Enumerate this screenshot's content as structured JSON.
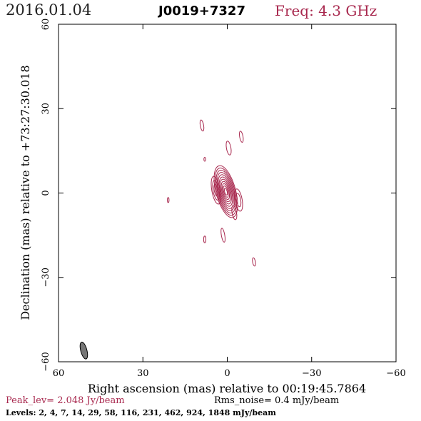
{
  "header": {
    "date": "2016.01.04",
    "source": "J0019+7327",
    "freq": "Freq: 4.3 GHz"
  },
  "chart_data": {
    "type": "contour",
    "xlabel": "Right ascension (mas) relative to 00:19:45.7864",
    "ylabel": "Declination (mas) relative to +73:27:30.018",
    "xlim": [
      60,
      -60
    ],
    "ylim": [
      -60,
      60
    ],
    "x_ticks": [
      "60",
      "30",
      "0",
      "−30",
      "−60"
    ],
    "y_ticks": [
      "60",
      "30",
      "0",
      "−30",
      "−60"
    ],
    "x_tick_values": [
      60,
      30,
      0,
      -30,
      -60
    ],
    "y_tick_values": [
      60,
      30,
      0,
      -30,
      -60
    ],
    "contour_color": "#a8284e",
    "beam_color": "#777777",
    "components": [
      {
        "x": 0.5,
        "y": 0.5,
        "a": 3.5,
        "b": 9.5,
        "angle": -15,
        "rings": 11
      },
      {
        "x": 4,
        "y": 1,
        "a": 1.5,
        "b": 5,
        "angle": -10,
        "rings": 3
      },
      {
        "x": -4,
        "y": -2.5,
        "a": 1.3,
        "b": 4,
        "angle": -10,
        "rings": 2
      },
      {
        "x": -2.5,
        "y": -7,
        "a": 0.8,
        "b": 2.5,
        "angle": -10,
        "rings": 1
      },
      {
        "x": -0.5,
        "y": 16,
        "a": 0.8,
        "b": 2.5,
        "angle": -10,
        "rings": 1
      },
      {
        "x": -5,
        "y": 20,
        "a": 0.6,
        "b": 2,
        "angle": -10,
        "rings": 1
      },
      {
        "x": 9,
        "y": 24,
        "a": 0.6,
        "b": 2,
        "angle": -10,
        "rings": 1
      },
      {
        "x": 8,
        "y": 12,
        "a": 0.3,
        "b": 0.7,
        "angle": 0,
        "rings": 1
      },
      {
        "x": 21,
        "y": -2.5,
        "a": 0.3,
        "b": 0.9,
        "angle": 0,
        "rings": 1
      },
      {
        "x": 1.5,
        "y": -15,
        "a": 0.6,
        "b": 2.5,
        "angle": -10,
        "rings": 1
      },
      {
        "x": 8,
        "y": -16.5,
        "a": 0.4,
        "b": 1.2,
        "angle": 0,
        "rings": 1
      },
      {
        "x": -9.5,
        "y": -24.5,
        "a": 0.5,
        "b": 1.5,
        "angle": -10,
        "rings": 1
      }
    ],
    "beam": {
      "x": 51,
      "y": -56,
      "a": 1.1,
      "b": 3.1,
      "angle": -15
    }
  },
  "footer": {
    "peak": "Peak_lev=  2.048 Jy/beam",
    "rms": "Rms_noise=  0.4 mJy/beam",
    "levels": "Levels:   2,   4,   7,  14,  29,  58,  116,  231,  462,  924,  1848  mJy/beam"
  }
}
